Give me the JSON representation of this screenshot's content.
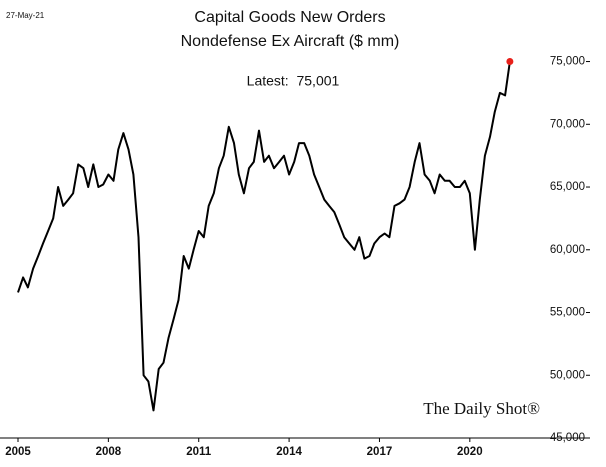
{
  "chart_data": {
    "type": "line",
    "date": "27-May-21",
    "title": "Capital Goods New Orders",
    "subtitle": "Nondefense Ex Aircraft ($ mm)",
    "annotation": "Latest:  75,001",
    "source": "The Daily Shot®",
    "x": [
      2005.0,
      2005.17,
      2005.33,
      2005.5,
      2005.67,
      2005.83,
      2006.0,
      2006.17,
      2006.33,
      2006.5,
      2006.67,
      2006.83,
      2007.0,
      2007.17,
      2007.33,
      2007.5,
      2007.67,
      2007.83,
      2008.0,
      2008.17,
      2008.33,
      2008.5,
      2008.67,
      2008.83,
      2009.0,
      2009.17,
      2009.33,
      2009.5,
      2009.67,
      2009.83,
      2010.0,
      2010.17,
      2010.33,
      2010.5,
      2010.67,
      2010.83,
      2011.0,
      2011.17,
      2011.33,
      2011.5,
      2011.67,
      2011.83,
      2012.0,
      2012.17,
      2012.33,
      2012.5,
      2012.67,
      2012.83,
      2013.0,
      2013.17,
      2013.33,
      2013.5,
      2013.67,
      2013.83,
      2014.0,
      2014.17,
      2014.33,
      2014.5,
      2014.67,
      2014.83,
      2015.0,
      2015.17,
      2015.33,
      2015.5,
      2015.67,
      2015.83,
      2016.0,
      2016.17,
      2016.33,
      2016.5,
      2016.67,
      2016.83,
      2017.0,
      2017.17,
      2017.33,
      2017.5,
      2017.67,
      2017.83,
      2018.0,
      2018.17,
      2018.33,
      2018.5,
      2018.67,
      2018.83,
      2019.0,
      2019.17,
      2019.33,
      2019.5,
      2019.67,
      2019.83,
      2020.0,
      2020.17,
      2020.33,
      2020.5,
      2020.67,
      2020.83,
      2021.0,
      2021.17,
      2021.33
    ],
    "values": [
      56600,
      57800,
      57000,
      58500,
      59500,
      60500,
      61500,
      62500,
      65000,
      63500,
      64000,
      64500,
      66800,
      66500,
      65000,
      66800,
      65000,
      65200,
      66000,
      65500,
      68000,
      69300,
      68000,
      66000,
      61000,
      50000,
      49500,
      47200,
      50500,
      51000,
      53000,
      54500,
      56000,
      59500,
      58500,
      60000,
      61500,
      61000,
      63500,
      64500,
      66500,
      67500,
      69800,
      68500,
      66000,
      64500,
      66500,
      67000,
      69500,
      67000,
      67500,
      66500,
      67000,
      67500,
      66000,
      67000,
      68500,
      68500,
      67500,
      66000,
      65000,
      64000,
      63500,
      63000,
      62000,
      61000,
      60500,
      60000,
      61000,
      59300,
      59500,
      60500,
      61000,
      61300,
      61000,
      63500,
      63700,
      64000,
      65000,
      67000,
      68500,
      66000,
      65500,
      64500,
      66000,
      65500,
      65500,
      65000,
      65000,
      65500,
      64500,
      60000,
      64000,
      67500,
      69000,
      71000,
      72500,
      72300,
      75001
    ],
    "color": "#000000",
    "latest_color": "#e8201a",
    "xlim": [
      2005,
      2021.5
    ],
    "xticks": [
      2005,
      2008,
      2011,
      2014,
      2017,
      2020
    ],
    "ylim": [
      45000,
      76000
    ],
    "yticks": [
      {
        "value": 45000,
        "label": "45,000"
      },
      {
        "value": 50000,
        "label": "50,000"
      },
      {
        "value": 55000,
        "label": "55,000"
      },
      {
        "value": 60000,
        "label": "60,000"
      },
      {
        "value": 65000,
        "label": "65,000"
      },
      {
        "value": 70000,
        "label": "70,000"
      },
      {
        "value": 75000,
        "label": "75,000"
      }
    ],
    "grid": false
  }
}
